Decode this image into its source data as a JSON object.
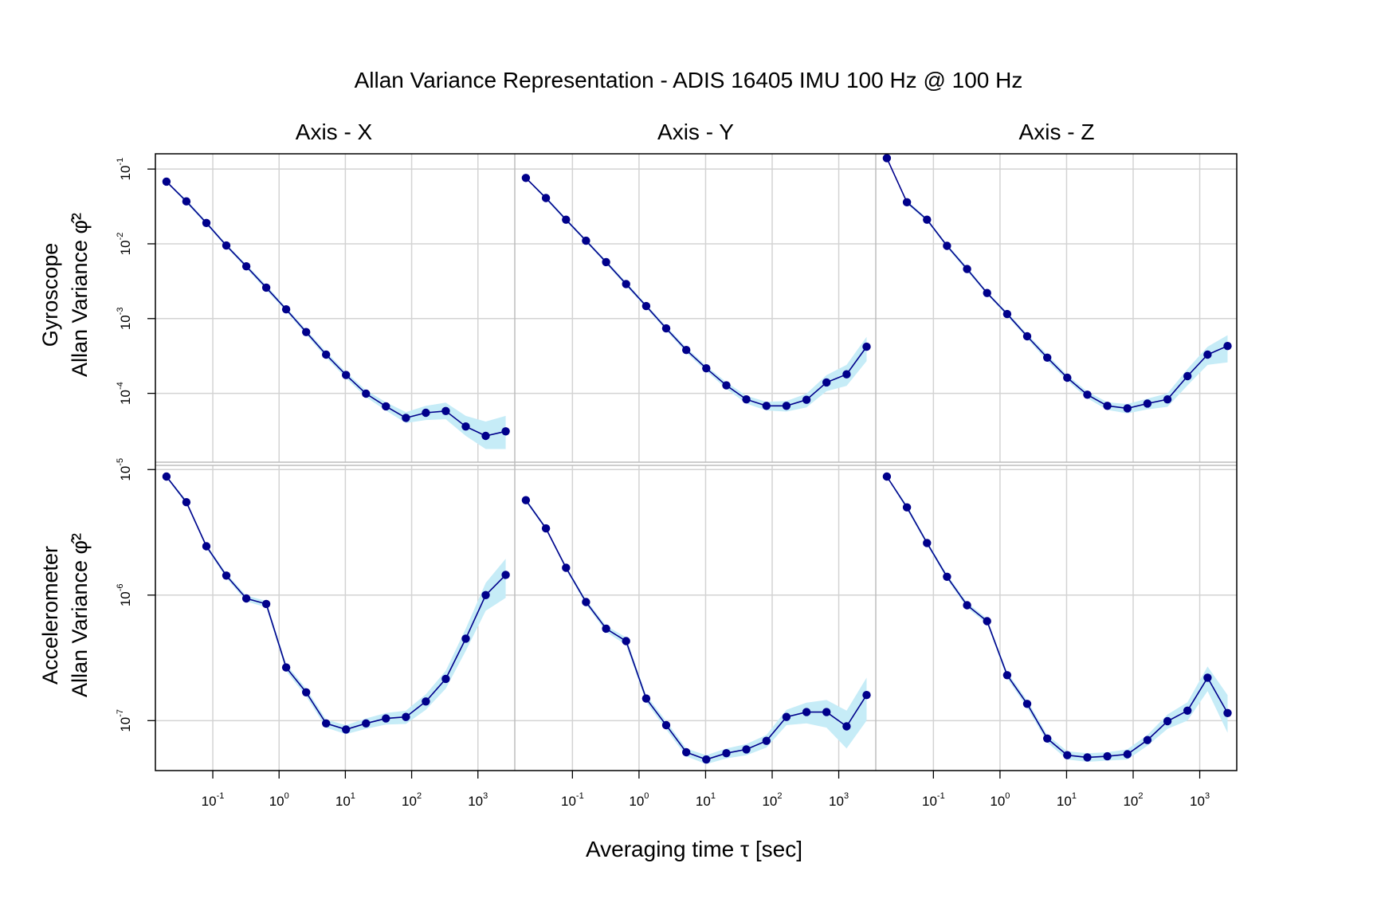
{
  "chart_data": {
    "type": "line",
    "title": "Allan Variance Representation - ADIS 16405 IMU 100 Hz @ 100 Hz",
    "xlabel": "Averaging time τ [sec]",
    "x_scale": "log10",
    "y_scale": "log10",
    "x_tick_labels": [
      "10^-1",
      "10^0",
      "10^1",
      "10^2",
      "10^3"
    ],
    "columns": [
      "Axis - X",
      "Axis - Y",
      "Axis - Z"
    ],
    "rows": [
      {
        "sensor": "Gyroscope",
        "ylabel": "Allan Variance φ̂²",
        "ylim": [
          1.2e-05,
          0.16
        ],
        "y_tick_labels": [
          "10^-5",
          "10^-4",
          "10^-3",
          "10^-2",
          "10^-1"
        ]
      },
      {
        "sensor": "Accelerometer",
        "ylabel": "Allan Variance φ̂²",
        "ylim": [
          4e-08,
          1.08e-05
        ],
        "y_tick_labels": [
          "10^-7",
          "10^-6",
          "10^-5"
        ]
      }
    ],
    "x": [
      0.02,
      0.04,
      0.08,
      0.16,
      0.32,
      0.64,
      1.28,
      2.56,
      5.12,
      10.24,
      20.48,
      40.96,
      81.92,
      163.84,
      327.68,
      655.36,
      1310.72,
      2621.44
    ],
    "line_color": "#00008b",
    "band_color": "#c6ecf7",
    "panels": [
      {
        "sensor": "Gyroscope",
        "axis": "Axis - X",
        "values": [
          0.068,
          0.037,
          0.019,
          0.0095,
          0.005,
          0.0026,
          0.00133,
          0.00066,
          0.00033,
          0.000176,
          9.9e-05,
          6.7e-05,
          4.7e-05,
          5.5e-05,
          5.8e-05,
          3.6e-05,
          2.7e-05,
          3.1e-05
        ],
        "lower": [
          0.066,
          0.035,
          0.018,
          0.009,
          0.0047,
          0.0024,
          0.00125,
          0.00061,
          0.0003,
          0.00016,
          8.9e-05,
          5.9e-05,
          4e-05,
          4.4e-05,
          4.5e-05,
          2.7e-05,
          1.8e-05,
          1.8e-05
        ],
        "upper": [
          0.07,
          0.039,
          0.02,
          0.01,
          0.0053,
          0.0028,
          0.00141,
          0.00071,
          0.00036,
          0.000192,
          0.00011,
          7.6e-05,
          5.6e-05,
          6.8e-05,
          7.5e-05,
          5e-05,
          4.2e-05,
          5e-05
        ]
      },
      {
        "sensor": "Gyroscope",
        "axis": "Axis - Y",
        "values": [
          0.076,
          0.041,
          0.021,
          0.011,
          0.0057,
          0.0029,
          0.00147,
          0.00074,
          0.00038,
          0.000216,
          0.000128,
          8.3e-05,
          6.8e-05,
          6.8e-05,
          8.2e-05,
          0.00014,
          0.00018,
          0.00042
        ],
        "lower": [
          0.074,
          0.039,
          0.02,
          0.0105,
          0.0054,
          0.0027,
          0.00139,
          0.00069,
          0.00035,
          0.000198,
          0.000115,
          7.3e-05,
          5.9e-05,
          5.7e-05,
          6.5e-05,
          0.000107,
          0.000126,
          0.00027
        ],
        "upper": [
          0.078,
          0.043,
          0.022,
          0.0115,
          0.006,
          0.0031,
          0.00155,
          0.00079,
          0.00041,
          0.000234,
          0.000141,
          9.3e-05,
          7.7e-05,
          7.9e-05,
          9.9e-05,
          0.000175,
          0.00024,
          0.00057
        ]
      },
      {
        "sensor": "Gyroscope",
        "axis": "Axis - Z",
        "values": [
          0.14,
          0.036,
          0.021,
          0.0094,
          0.0046,
          0.0022,
          0.00115,
          0.00058,
          0.0003,
          0.000162,
          9.6e-05,
          6.8e-05,
          6.3e-05,
          7.3e-05,
          8.3e-05,
          0.00017,
          0.00033,
          0.00043
        ],
        "lower": [
          0.136,
          0.034,
          0.02,
          0.0089,
          0.0043,
          0.0021,
          0.00108,
          0.00054,
          0.00027,
          0.000148,
          8.6e-05,
          6e-05,
          5.4e-05,
          6.1e-05,
          6.6e-05,
          0.000128,
          0.00024,
          0.00026
        ],
        "upper": [
          0.144,
          0.038,
          0.022,
          0.0099,
          0.0049,
          0.0023,
          0.00122,
          0.00062,
          0.00033,
          0.000176,
          0.000106,
          7.6e-05,
          7.2e-05,
          8.5e-05,
          0.0001,
          0.000212,
          0.00042,
          0.0006
        ]
      },
      {
        "sensor": "Accelerometer",
        "axis": "Axis - X",
        "values": [
          8.8e-06,
          5.5e-06,
          2.45e-06,
          1.43e-06,
          9.4e-07,
          8.5e-07,
          2.65e-07,
          1.68e-07,
          9.5e-08,
          8.5e-08,
          9.5e-08,
          1.04e-07,
          1.07e-07,
          1.42e-07,
          2.15e-07,
          4.5e-07,
          1e-06,
          1.45e-06
        ],
        "lower": [
          8.6e-06,
          5.3e-06,
          2.36e-06,
          1.37e-06,
          8.9e-07,
          8e-07,
          2.48e-07,
          1.56e-07,
          8.8e-08,
          7.8e-08,
          8.6e-08,
          9.3e-08,
          9.4e-08,
          1.22e-07,
          1.8e-07,
          3.6e-07,
          7.5e-07,
          9.5e-07
        ],
        "upper": [
          9e-06,
          5.7e-06,
          2.54e-06,
          1.49e-06,
          9.9e-07,
          9e-07,
          2.82e-07,
          1.8e-07,
          1.02e-07,
          9.2e-08,
          1.04e-07,
          1.15e-07,
          1.2e-07,
          1.62e-07,
          2.5e-07,
          5.4e-07,
          1.25e-06,
          1.95e-06
        ]
      },
      {
        "sensor": "Accelerometer",
        "axis": "Axis - Y",
        "values": [
          5.7e-06,
          3.4e-06,
          1.65e-06,
          8.8e-07,
          5.4e-07,
          4.3e-07,
          1.5e-07,
          9.2e-08,
          5.6e-08,
          4.9e-08,
          5.5e-08,
          5.9e-08,
          6.9e-08,
          1.07e-07,
          1.17e-07,
          1.17e-07,
          9e-08,
          1.6e-07
        ],
        "lower": [
          5.5e-06,
          3.3e-06,
          1.59e-06,
          8.4e-07,
          5.1e-07,
          4e-07,
          1.4e-07,
          8.5e-08,
          5.2e-08,
          4.5e-08,
          5e-08,
          5.3e-08,
          6.1e-08,
          9.2e-08,
          9.5e-08,
          8.8e-08,
          6e-08,
          1e-07
        ],
        "upper": [
          5.9e-06,
          3.5e-06,
          1.71e-06,
          9.2e-07,
          5.7e-07,
          4.6e-07,
          1.6e-07,
          9.9e-08,
          6e-08,
          5.3e-08,
          6e-08,
          6.5e-08,
          7.7e-08,
          1.22e-07,
          1.39e-07,
          1.46e-07,
          1.2e-07,
          2.2e-07
        ]
      },
      {
        "sensor": "Accelerometer",
        "axis": "Axis - Z",
        "values": [
          8.8e-06,
          5e-06,
          2.6e-06,
          1.4e-06,
          8.3e-07,
          6.2e-07,
          2.3e-07,
          1.36e-07,
          7.2e-08,
          5.3e-08,
          5.1e-08,
          5.2e-08,
          5.4e-08,
          7e-08,
          9.9e-08,
          1.2e-07,
          2.2e-07,
          1.15e-07
        ],
        "lower": [
          8.6e-06,
          4.8e-06,
          2.5e-06,
          1.34e-06,
          7.9e-07,
          5.9e-07,
          2.17e-07,
          1.27e-07,
          6.7e-08,
          4.9e-08,
          4.7e-08,
          4.8e-08,
          4.9e-08,
          6.3e-08,
          8.6e-08,
          1e-07,
          1.72e-07,
          8e-08
        ],
        "upper": [
          9e-06,
          5.2e-06,
          2.7e-06,
          1.46e-06,
          8.7e-07,
          6.5e-07,
          2.43e-07,
          1.45e-07,
          7.7e-08,
          5.7e-08,
          5.5e-08,
          5.6e-08,
          5.9e-08,
          7.7e-08,
          1.12e-07,
          1.4e-07,
          2.7e-07,
          1.6e-07
        ]
      }
    ]
  }
}
